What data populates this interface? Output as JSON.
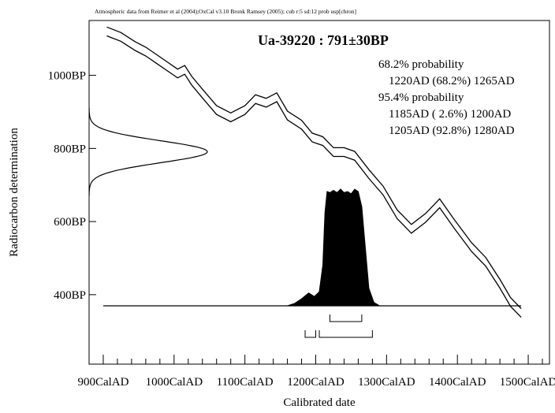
{
  "header": {
    "credit": "Atmospheric data from Reimer et al (2004);OxCal v3.10 Bronk Ramsey (2005); cub r:5 sd:12 prob usp[chron]"
  },
  "chart_data": {
    "type": "line",
    "title": "Ua-39220 : 791±30BP",
    "xlabel": "Calibrated date",
    "ylabel": "Radiocarbon determination",
    "xlim": [
      880,
      1530
    ],
    "ylim": [
      210,
      1150
    ],
    "x_ticks": [
      {
        "value": 900,
        "label": "900CalAD"
      },
      {
        "value": 1000,
        "label": "1000CalAD"
      },
      {
        "value": 1100,
        "label": "1100CalAD"
      },
      {
        "value": 1200,
        "label": "1200CalAD"
      },
      {
        "value": 1300,
        "label": "1300CalAD"
      },
      {
        "value": 1400,
        "label": "1400CalAD"
      },
      {
        "value": 1500,
        "label": "1500CalAD"
      }
    ],
    "y_ticks": [
      {
        "value": 400,
        "label": "400BP"
      },
      {
        "value": 600,
        "label": "600BP"
      },
      {
        "value": 800,
        "label": "800BP"
      },
      {
        "value": 1000,
        "label": "1000BP"
      }
    ],
    "annotations": [
      "68.2% probability",
      "1220AD (68.2%) 1265AD",
      "95.4% probability",
      "1185AD ( 2.6%) 1200AD",
      "1205AD (92.8%) 1280AD"
    ],
    "radiocarbon_date": {
      "mean": 791,
      "sd": 30
    },
    "calibration_curve": [
      {
        "x": 905,
        "y": 1120
      },
      {
        "x": 925,
        "y": 1105
      },
      {
        "x": 945,
        "y": 1080
      },
      {
        "x": 960,
        "y": 1065
      },
      {
        "x": 975,
        "y": 1045
      },
      {
        "x": 990,
        "y": 1025
      },
      {
        "x": 1005,
        "y": 1005
      },
      {
        "x": 1015,
        "y": 1015
      },
      {
        "x": 1025,
        "y": 985
      },
      {
        "x": 1040,
        "y": 950
      },
      {
        "x": 1060,
        "y": 905
      },
      {
        "x": 1080,
        "y": 885
      },
      {
        "x": 1100,
        "y": 905
      },
      {
        "x": 1115,
        "y": 935
      },
      {
        "x": 1130,
        "y": 925
      },
      {
        "x": 1145,
        "y": 940
      },
      {
        "x": 1160,
        "y": 890
      },
      {
        "x": 1180,
        "y": 865
      },
      {
        "x": 1195,
        "y": 830
      },
      {
        "x": 1210,
        "y": 820
      },
      {
        "x": 1225,
        "y": 790
      },
      {
        "x": 1240,
        "y": 790
      },
      {
        "x": 1255,
        "y": 780
      },
      {
        "x": 1275,
        "y": 730
      },
      {
        "x": 1295,
        "y": 685
      },
      {
        "x": 1315,
        "y": 620
      },
      {
        "x": 1335,
        "y": 580
      },
      {
        "x": 1355,
        "y": 610
      },
      {
        "x": 1375,
        "y": 650
      },
      {
        "x": 1395,
        "y": 595
      },
      {
        "x": 1420,
        "y": 530
      },
      {
        "x": 1440,
        "y": 490
      },
      {
        "x": 1460,
        "y": 430
      },
      {
        "x": 1475,
        "y": 380
      },
      {
        "x": 1490,
        "y": 350
      }
    ],
    "calibration_band": 12,
    "calibrated_distribution": [
      {
        "x": 1160,
        "p": 0.0
      },
      {
        "x": 1170,
        "p": 0.02
      },
      {
        "x": 1180,
        "p": 0.06
      },
      {
        "x": 1190,
        "p": 0.11
      },
      {
        "x": 1198,
        "p": 0.08
      },
      {
        "x": 1205,
        "p": 0.12
      },
      {
        "x": 1210,
        "p": 0.35
      },
      {
        "x": 1213,
        "p": 0.8
      },
      {
        "x": 1216,
        "p": 0.98
      },
      {
        "x": 1220,
        "p": 0.97
      },
      {
        "x": 1225,
        "p": 0.99
      },
      {
        "x": 1230,
        "p": 0.97
      },
      {
        "x": 1235,
        "p": 1.0
      },
      {
        "x": 1240,
        "p": 0.97
      },
      {
        "x": 1245,
        "p": 0.98
      },
      {
        "x": 1250,
        "p": 0.96
      },
      {
        "x": 1255,
        "p": 1.0
      },
      {
        "x": 1260,
        "p": 0.98
      },
      {
        "x": 1265,
        "p": 0.85
      },
      {
        "x": 1270,
        "p": 0.5
      },
      {
        "x": 1275,
        "p": 0.15
      },
      {
        "x": 1282,
        "p": 0.03
      },
      {
        "x": 1290,
        "p": 0.0
      }
    ],
    "ranges_68": [
      [
        1220,
        1265
      ]
    ],
    "ranges_95": [
      [
        1185,
        1200
      ],
      [
        1205,
        1280
      ]
    ],
    "grid": false,
    "legend": "none"
  }
}
